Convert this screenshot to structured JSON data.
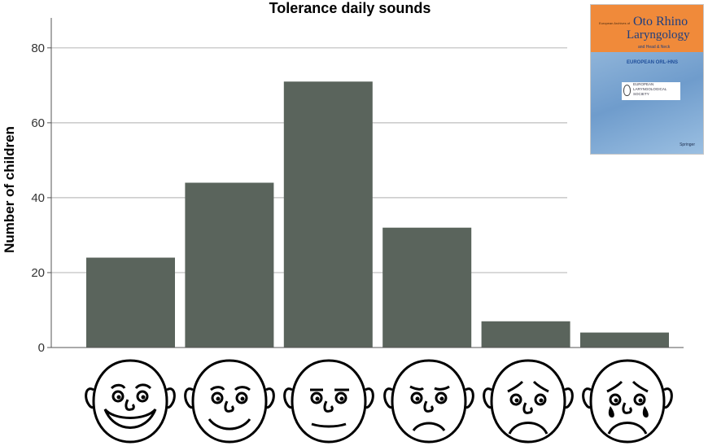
{
  "chart_data": {
    "type": "bar",
    "title": "Tolerance daily sounds",
    "xlabel": "",
    "ylabel": "Number of children",
    "categories": [
      "very happy face",
      "happy face",
      "neutral face",
      "slightly sad face",
      "sad face",
      "crying face"
    ],
    "values": [
      24,
      44,
      71,
      32,
      7,
      4
    ],
    "ylim": [
      0,
      88
    ],
    "yticks": [
      0,
      20,
      40,
      60,
      80
    ],
    "grid": true,
    "bar_color": "#5a645c",
    "grid_color": "#bdbdbd"
  },
  "journal_cover": {
    "series_line": "European Archives of",
    "title_line1": "Oto Rhino",
    "title_line2": "Laryngology",
    "title_line3": "and Head & Neck",
    "logo1": "EUROPEAN ORL-HNS",
    "logo2": "EUROPEAN LARYNGOLOGICAL SOCIETY",
    "publisher": "Springer"
  }
}
